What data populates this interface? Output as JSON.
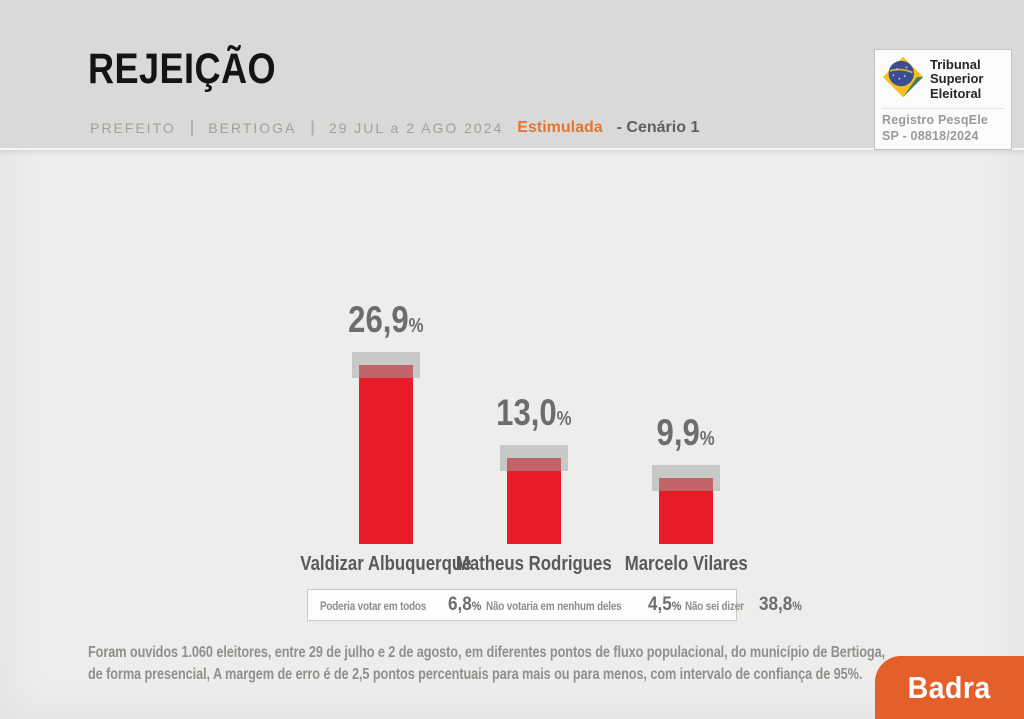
{
  "page": {
    "title": "REJEIÇÃO"
  },
  "subtitle": {
    "office": "PREFEITO",
    "separator": "|",
    "city": "BERTIOGA",
    "date_range": "29 JUL a 2 AGO 2024",
    "method": "Estimulada",
    "scenario": "- Cenário 1"
  },
  "tse_badge": {
    "org_lines": [
      "Tribunal",
      "Superior",
      "Eleitoral"
    ],
    "registro_line1": "Registro PesqEle",
    "registro_line2": "SP -  08818/2024"
  },
  "chart_data": {
    "type": "bar",
    "categories": [
      "Valdizar Albuquerque",
      "Matheus Rodrigues",
      "Marcelo Vilares"
    ],
    "values": [
      26.9,
      13.0,
      9.9
    ],
    "value_labels": [
      "26,9",
      "13,0",
      "9,9"
    ],
    "unit": "%",
    "bar_color": "#e71c28",
    "ylim": [
      0,
      30
    ],
    "grid": false,
    "legend": false,
    "extra_stats": [
      {
        "label": "Poderia votar em todos",
        "value": "6,8",
        "unit": "%"
      },
      {
        "label": "Não votaria em nenhum deles",
        "value": "4,5",
        "unit": "%"
      },
      {
        "label": "Não sei dizer",
        "value": "38,8",
        "unit": "%"
      }
    ]
  },
  "footer": {
    "methodology_lines": [
      "Foram ouvidos 1.060 eleitores, entre 29 de julho e 2 de agosto, em diferentes pontos de fluxo populacional, do município de Bertioga,",
      "de forma presencial, A margem de erro é de 2,5 pontos percentuais para mais ou para menos, com intervalo de confiança de 95%."
    ],
    "brand": "Badra"
  },
  "colors": {
    "bar_red": "#e71c28",
    "accent_orange": "#e5752f",
    "brand_orange": "#e55f2b",
    "header_bg": "#d9dad7",
    "body_bg": "#edeeec"
  }
}
